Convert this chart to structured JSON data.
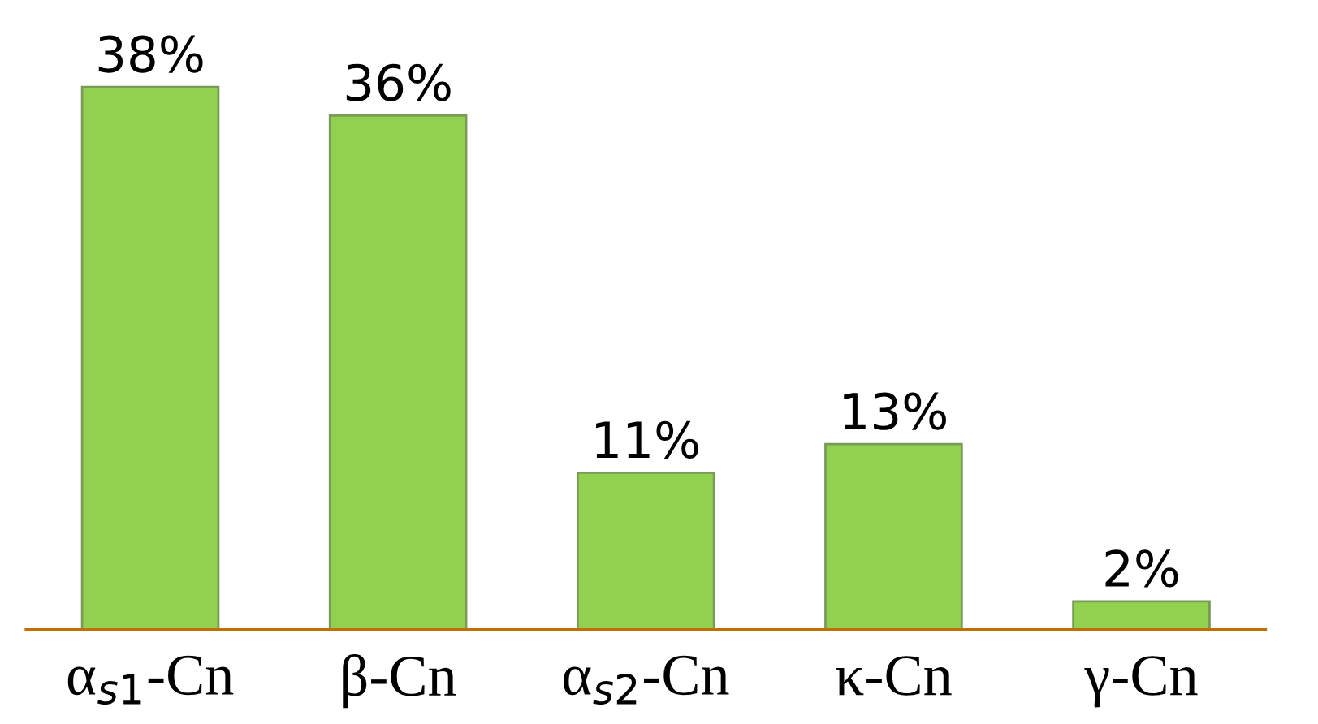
{
  "chart_data": {
    "type": "bar",
    "categories": [
      "α$_{s1}$-Cn",
      "β-Cn",
      "α$_{s2}$-Cn",
      "κ-Cn",
      "γ-Cn"
    ],
    "values": [
      38,
      36,
      11,
      13,
      2
    ],
    "color": "#92d050",
    "value_labels": [
      "38%",
      "36%",
      "11%",
      "13%",
      "2%"
    ],
    "grid": false,
    "legend": false
  }
}
